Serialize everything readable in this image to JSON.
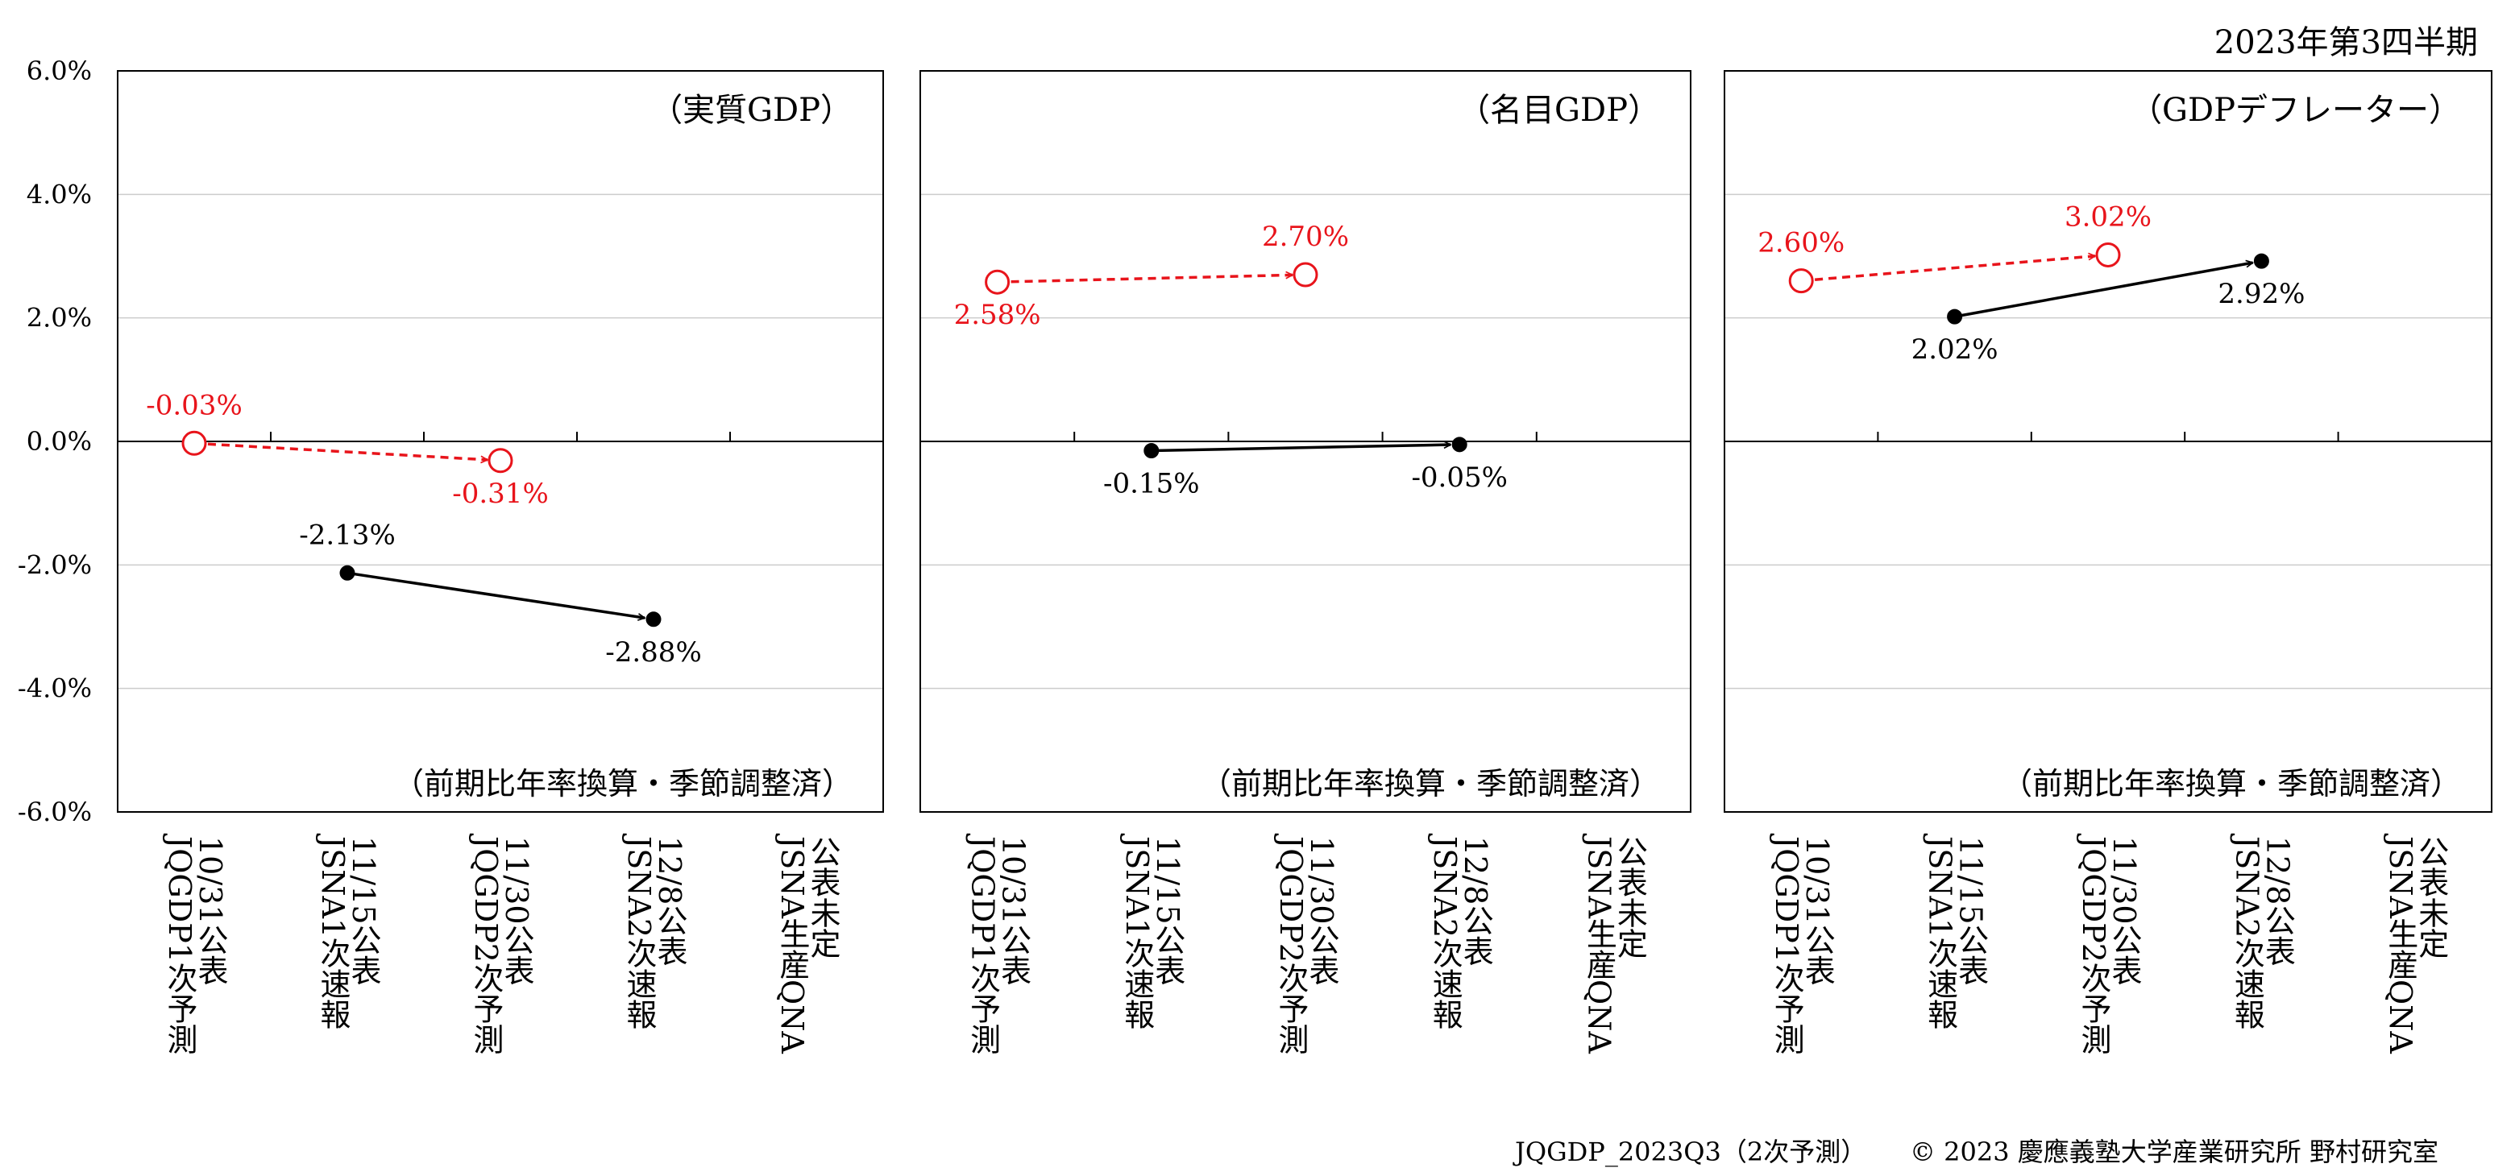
{
  "header": {
    "period": "2023年第3四半期"
  },
  "footer": {
    "left": "JQGDP_2023Q3（2次予測）",
    "right": "© 2023 慶應義塾大学産業研究所 野村研究室"
  },
  "colors": {
    "forecast": "#e8141b",
    "official": "#000000",
    "grid": "#cccccc"
  },
  "chart_data": [
    {
      "type": "scatter",
      "title": "（実質GDP）",
      "note": "（前期比年率換算・季節調整済）",
      "ylim": [
        -6,
        6
      ],
      "yticks": [
        "6.0%",
        "4.0%",
        "2.0%",
        "0.0%",
        "-2.0%",
        "-4.0%",
        "-6.0%"
      ],
      "categories": [
        "10/31公表\nJQGDP1次予測",
        "11/15公表\nJSNA1次速報",
        "11/30公表\nJQGDP2次予測",
        "12/8公表\nJSNA2次速報",
        "公表未定\nJSNA生産QNA"
      ],
      "series": [
        {
          "style": "dashed-open",
          "color": "#e8141b",
          "points": [
            {
              "x": 0,
              "y": -0.03,
              "label": "-0.03%",
              "pos": "above"
            },
            {
              "x": 2,
              "y": -0.31,
              "label": "-0.31%",
              "pos": "below"
            }
          ]
        },
        {
          "style": "solid-filled",
          "color": "#000000",
          "points": [
            {
              "x": 1,
              "y": -2.13,
              "label": "-2.13%",
              "pos": "above"
            },
            {
              "x": 3,
              "y": -2.88,
              "label": "-2.88%",
              "pos": "below"
            }
          ]
        }
      ]
    },
    {
      "type": "scatter",
      "title": "（名目GDP）",
      "note": "（前期比年率換算・季節調整済）",
      "ylim": [
        -6,
        6
      ],
      "categories": [
        "10/31公表\nJQGDP1次予測",
        "11/15公表\nJSNA1次速報",
        "11/30公表\nJQGDP2次予測",
        "12/8公表\nJSNA2次速報",
        "公表未定\nJSNA生産QNA"
      ],
      "series": [
        {
          "style": "dashed-open",
          "color": "#e8141b",
          "points": [
            {
              "x": 0,
              "y": 2.58,
              "label": "2.58%",
              "pos": "below"
            },
            {
              "x": 2,
              "y": 2.7,
              "label": "2.70%",
              "pos": "above"
            }
          ]
        },
        {
          "style": "solid-filled",
          "color": "#000000",
          "points": [
            {
              "x": 1,
              "y": -0.15,
              "label": "-0.15%",
              "pos": "below"
            },
            {
              "x": 3,
              "y": -0.05,
              "label": "-0.05%",
              "pos": "below"
            }
          ]
        }
      ]
    },
    {
      "type": "scatter",
      "title": "（GDPデフレーター）",
      "note": "（前期比年率換算・季節調整済）",
      "ylim": [
        -6,
        6
      ],
      "categories": [
        "10/31公表\nJQGDP1次予測",
        "11/15公表\nJSNA1次速報",
        "11/30公表\nJQGDP2次予測",
        "12/8公表\nJSNA2次速報",
        "公表未定\nJSNA生産QNA"
      ],
      "series": [
        {
          "style": "dashed-open",
          "color": "#e8141b",
          "points": [
            {
              "x": 0,
              "y": 2.6,
              "label": "2.60%",
              "pos": "above"
            },
            {
              "x": 2,
              "y": 3.02,
              "label": "3.02%",
              "pos": "above"
            }
          ]
        },
        {
          "style": "solid-filled",
          "color": "#000000",
          "points": [
            {
              "x": 1,
              "y": 2.02,
              "label": "2.02%",
              "pos": "below"
            },
            {
              "x": 3,
              "y": 2.92,
              "label": "2.92%",
              "pos": "below"
            }
          ]
        }
      ]
    }
  ]
}
